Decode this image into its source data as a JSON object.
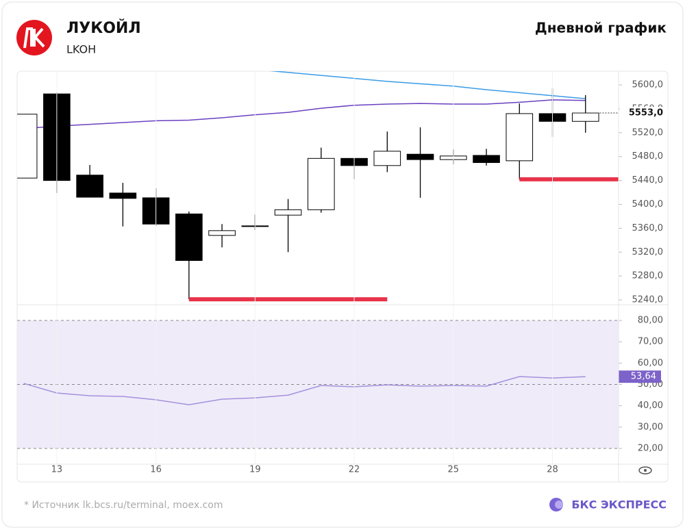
{
  "chart_data": {
    "type": "candlestick",
    "title": "ЛУКОЙЛ",
    "subtitle": "LKOH",
    "chart_label": "Дневной график",
    "x": [
      12,
      13,
      14,
      15,
      16,
      17,
      18,
      19,
      20,
      21,
      22,
      23,
      24,
      25,
      26,
      27,
      28,
      29
    ],
    "open": [
      5444,
      5585,
      5449,
      5419,
      5411,
      5384,
      5348,
      5363,
      5382,
      5391,
      5477,
      5465,
      5484,
      5475,
      5482,
      5473,
      5552,
      5539
    ],
    "high": [
      5551,
      5587,
      5466,
      5436,
      5427,
      5388,
      5367,
      5383,
      5409,
      5495,
      5477,
      5522,
      5529,
      5492,
      5493,
      5569,
      5594,
      5583
    ],
    "low": [
      5444,
      5419,
      5412,
      5363,
      5364,
      5241,
      5328,
      5357,
      5320,
      5386,
      5442,
      5454,
      5411,
      5467,
      5465,
      5442,
      5513,
      5520
    ],
    "close": [
      5551,
      5440,
      5412,
      5410,
      5367,
      5306,
      5356,
      5364,
      5391,
      5477,
      5465,
      5489,
      5475,
      5481,
      5470,
      5552,
      5539,
      5553
    ],
    "up_color": "#ffffff",
    "down_color": "#000000",
    "lines": [
      {
        "color": "#3a9be6",
        "values": [
          null,
          null,
          null,
          null,
          null,
          null,
          null,
          5626,
          5621,
          5616,
          5611,
          5606,
          5602,
          5598,
          5592,
          5587,
          5582,
          5577
        ]
      },
      {
        "color": "#6a3fc0",
        "values": [
          5527,
          5531,
          5534,
          5537,
          5540,
          5541,
          5545,
          5550,
          5554,
          5561,
          5566,
          5568,
          5569,
          5568,
          5568,
          5571,
          5575,
          5574
        ]
      }
    ],
    "levels": [
      {
        "value": 5241,
        "from": 17,
        "to": 23,
        "color": "#e8334a"
      },
      {
        "value": 5442,
        "from": 27,
        "to": 30,
        "color": "#e8334a"
      }
    ],
    "last_price": {
      "value": 5553,
      "label": "5553,0"
    },
    "xlim": [
      11.8,
      30
    ],
    "xticks": [
      13,
      16,
      19,
      22,
      25,
      28
    ],
    "ylim": [
      5232,
      5623
    ],
    "yticks": [
      {
        "value": 5240,
        "label": "5240,0"
      },
      {
        "value": 5280,
        "label": "5280,0"
      },
      {
        "value": 5320,
        "label": "5320,0"
      },
      {
        "value": 5360,
        "label": "5360,0"
      },
      {
        "value": 5400,
        "label": "5400,0"
      },
      {
        "value": 5440,
        "label": "5440,0"
      },
      {
        "value": 5480,
        "label": "5480,0"
      },
      {
        "value": 5520,
        "label": "5520,0"
      },
      {
        "value": 5560,
        "label": "5560,0"
      },
      {
        "value": 5600,
        "label": "5600,0"
      }
    ],
    "rsi": {
      "values": [
        50.5,
        46,
        44.7,
        44.4,
        42.8,
        40.5,
        43.1,
        43.7,
        45,
        49.5,
        48.9,
        49.8,
        49.2,
        49.5,
        49.2,
        53.7,
        53,
        53.64
      ],
      "last_label": "53,64",
      "color": "#a590dc",
      "band": [
        20,
        80
      ],
      "band_color": "#efebf9",
      "ylim": [
        12.6,
        87.4
      ],
      "yticks": [
        {
          "value": 20,
          "label": "20,00"
        },
        {
          "value": 30,
          "label": "30,00"
        },
        {
          "value": 40,
          "label": "40,00"
        },
        {
          "value": 50,
          "label": "50,00"
        },
        {
          "value": 60,
          "label": "60,00"
        },
        {
          "value": 70,
          "label": "70,00"
        },
        {
          "value": 80,
          "label": "80,00"
        }
      ],
      "dashed": [
        20,
        50,
        80
      ]
    },
    "source": "* Источник lk.bcs.ru/terminal, moex.com",
    "brand": "БКС ЭКСПРЕСС"
  }
}
